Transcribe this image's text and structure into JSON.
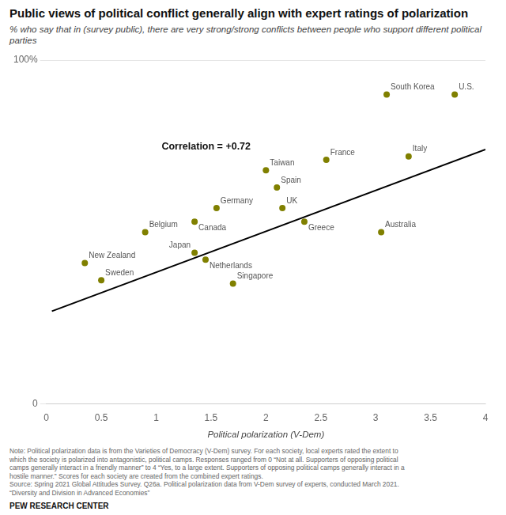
{
  "chart_data": {
    "type": "scatter",
    "title": "Public views of political conflict generally align with expert ratings of polarization",
    "subtitle": "% who say that in (survey public), there are very strong/strong conflicts between people who support different political parties",
    "xlabel": "Political polarization (V-Dem)",
    "series": [
      {
        "type": "scatter",
        "color": "#808000",
        "x": [
          0.35,
          0.5,
          0.9,
          1.35,
          1.35,
          1.45,
          1.55,
          1.7,
          2.0,
          2.1,
          2.15,
          2.35,
          2.55,
          3.05,
          3.1,
          3.3,
          3.72
        ],
        "values": [
          41,
          36,
          50,
          53,
          44,
          42,
          57,
          35,
          68,
          63,
          57,
          53,
          71,
          50,
          90,
          72,
          90
        ],
        "point_labels": [
          "New Zealand",
          "Sweden",
          "Belgium",
          "Canada",
          "Japan",
          "Netherlands",
          "Germany",
          "Singapore",
          "Taiwan",
          "Spain",
          "UK",
          "Greece",
          "France",
          "Australia",
          "South Korea",
          "Italy",
          "U.S."
        ]
      },
      {
        "type": "line",
        "color": "#000000",
        "x": [
          0.05,
          4.0
        ],
        "values": [
          27.0,
          74.0
        ]
      }
    ],
    "annotations": [
      {
        "text": "Correlation = +0.72",
        "x": 1.05,
        "y": 74
      }
    ],
    "xlim": [
      0,
      4
    ],
    "ylim": [
      0,
      100
    ],
    "xticks": [
      0,
      0.5,
      1,
      1.5,
      2,
      2.5,
      3,
      3.5,
      4
    ],
    "yticks": [
      0,
      {
        "value": 100,
        "label": "100%"
      }
    ],
    "grid": "y",
    "legend": false,
    "notes": [
      "Note: Political polarization data is from the Varieties of Democracy (V-Dem) survey. For each society, local experts rated the extent to",
      "which the society is polarized into antagonistic, political camps. Responses ranged from 0 “Not at all. Supporters of opposing political",
      "camps generally interact in a friendly manner” to 4 “Yes, to a large extent. Supporters of opposing political camps generally interact in a",
      "hostile manner.” Scores for each society are created from the combined expert ratings.",
      "Source: Spring 2021 Global Attitudes Survey. Q26a. Political polarization data from V-Dem survey of experts, conducted March 2021.",
      "“Diversity and Division in Advanced Economies”"
    ],
    "source": "PEW RESEARCH CENTER"
  }
}
